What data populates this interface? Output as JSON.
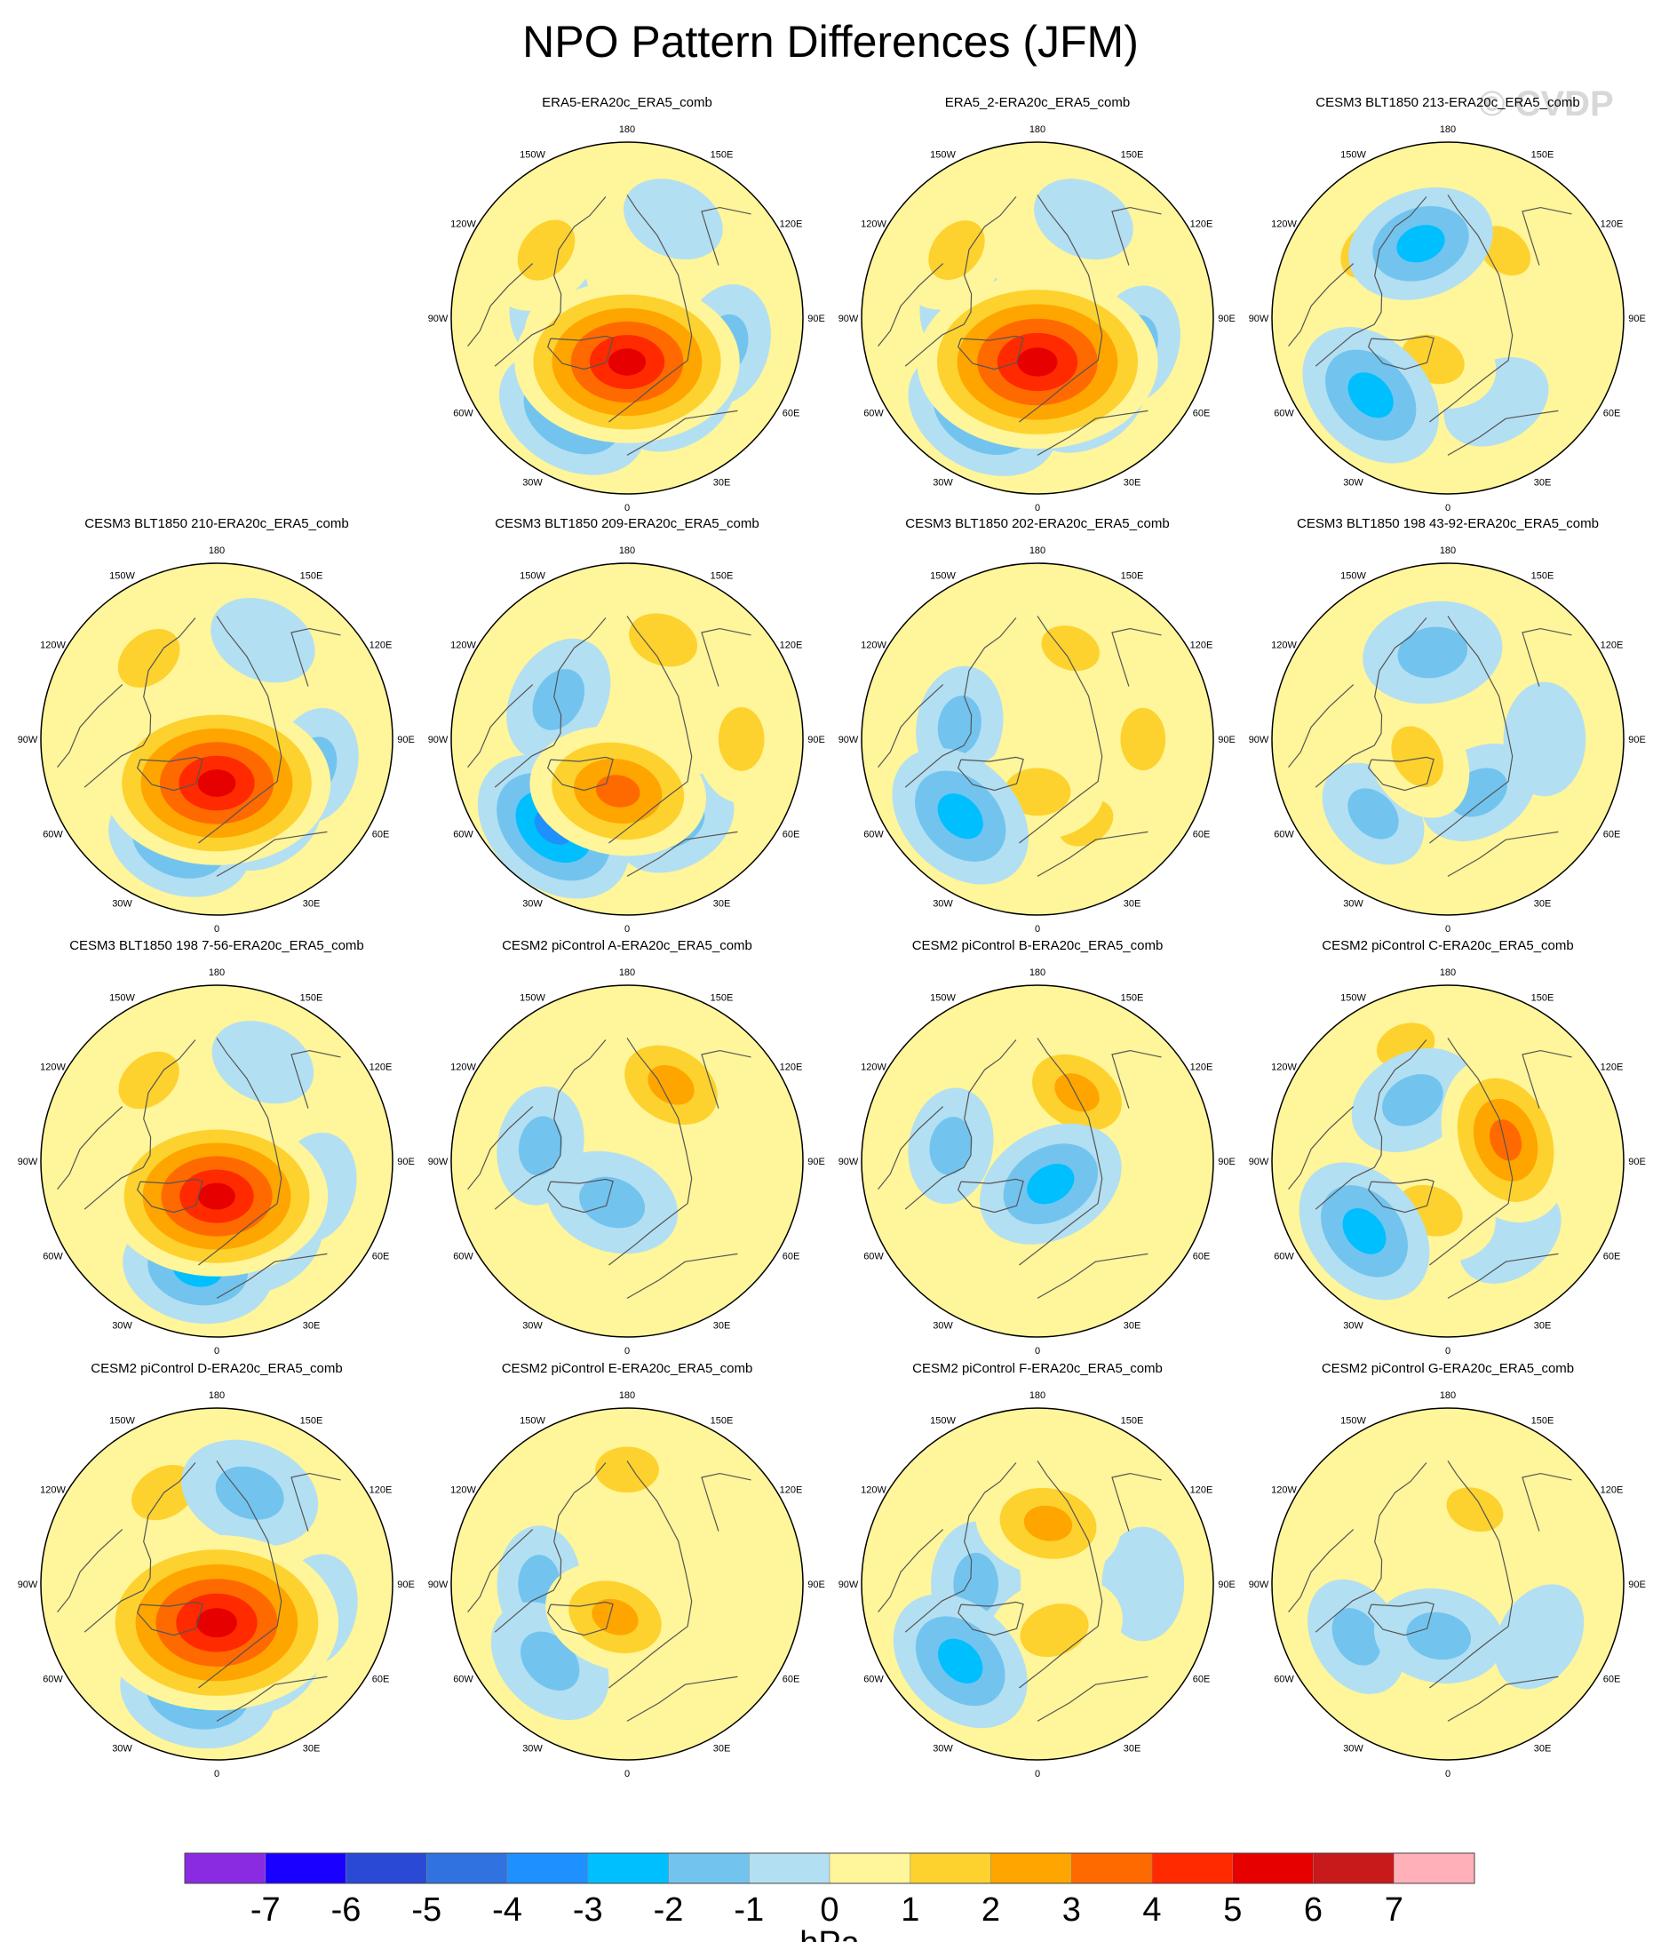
{
  "title": "NPO Pattern Differences (JFM)",
  "watermark": "© CVDP",
  "chart_data": {
    "type": "contour-map-panels",
    "projection": "north polar stereographic",
    "variable": "NPO pattern difference",
    "units": "hPa",
    "colorbar": {
      "levels": [
        -7,
        -6,
        -5,
        -4,
        -3,
        -2,
        -1,
        0,
        1,
        2,
        3,
        4,
        5,
        6,
        7
      ],
      "tick_labels": [
        "-7",
        "-6",
        "-5",
        "-4",
        "-3",
        "-2",
        "-1",
        "0",
        "1",
        "2",
        "3",
        "4",
        "5",
        "6",
        "7"
      ],
      "colors": [
        "#8a2be2",
        "#1a00ff",
        "#2a4ad6",
        "#3072e0",
        "#1e90ff",
        "#00bfff",
        "#72c4ef",
        "#b3dff2",
        "#fff59a",
        "#fdd22e",
        "#ffa500",
        "#ff6a00",
        "#ff2a00",
        "#e60000",
        "#c81a1a",
        "#ffb0b8"
      ],
      "label": "hPa"
    },
    "lon_labels": [
      "180",
      "150E",
      "120E",
      "90E",
      "60E",
      "30E",
      "0",
      "30W",
      "60W",
      "90W",
      "120W",
      "150W"
    ],
    "panels": [
      {
        "title": "ERA5-ERA20c_ERA5_comb",
        "features": [
          {
            "lon": 0,
            "r": 0.25,
            "max": 5.2
          },
          {
            "lon": 75,
            "r": 0.58,
            "max": -1.3
          },
          {
            "lon": 155,
            "r": 0.62,
            "max": -0.6
          },
          {
            "lon": -55,
            "r": 0.35,
            "max": 1.5
          },
          {
            "lon": -130,
            "r": 0.6,
            "max": 1.8
          },
          {
            "lon": -30,
            "r": 0.62,
            "max": -2.6
          },
          {
            "lon": 30,
            "r": 0.55,
            "max": -1.4
          },
          {
            "lon": -100,
            "r": 0.45,
            "max": -0.8
          }
        ]
      },
      {
        "title": "ERA5_2-ERA20c_ERA5_comb",
        "features": [
          {
            "lon": 0,
            "r": 0.25,
            "max": 5.8
          },
          {
            "lon": 75,
            "r": 0.58,
            "max": -1.2
          },
          {
            "lon": 155,
            "r": 0.62,
            "max": -0.6
          },
          {
            "lon": -55,
            "r": 0.35,
            "max": 1.6
          },
          {
            "lon": -130,
            "r": 0.6,
            "max": 1.7
          },
          {
            "lon": -30,
            "r": 0.62,
            "max": -2.7
          },
          {
            "lon": 30,
            "r": 0.55,
            "max": -1.5
          },
          {
            "lon": -100,
            "r": 0.45,
            "max": -0.8
          }
        ]
      },
      {
        "title": "CESM3 BLT1850 213-ERA20c_ERA5_comb",
        "features": [
          {
            "lon": -20,
            "r": 0.25,
            "max": 1.6
          },
          {
            "lon": -160,
            "r": 0.45,
            "max": -2.3
          },
          {
            "lon": -45,
            "r": 0.62,
            "max": -2.6
          },
          {
            "lon": -130,
            "r": 0.6,
            "max": 1.4
          },
          {
            "lon": 140,
            "r": 0.5,
            "max": 1.1
          },
          {
            "lon": 80,
            "r": 0.6,
            "max": 0.9
          },
          {
            "lon": 30,
            "r": 0.55,
            "max": -0.9
          }
        ]
      },
      {
        "title": "CESM3 BLT1850 210-ERA20c_ERA5_comb",
        "features": [
          {
            "lon": 0,
            "r": 0.25,
            "max": 5.3
          },
          {
            "lon": 75,
            "r": 0.58,
            "max": -1.1
          },
          {
            "lon": 155,
            "r": 0.62,
            "max": -0.8
          },
          {
            "lon": -55,
            "r": 0.35,
            "max": 1.5
          },
          {
            "lon": -140,
            "r": 0.6,
            "max": 1.9
          },
          {
            "lon": -20,
            "r": 0.62,
            "max": -2.2
          },
          {
            "lon": 30,
            "r": 0.55,
            "max": -1.2
          }
        ]
      },
      {
        "title": "CESM3 BLT1850 209-ERA20c_ERA5_comb",
        "features": [
          {
            "lon": -10,
            "r": 0.3,
            "max": 3.4
          },
          {
            "lon": -40,
            "r": 0.65,
            "max": -3.1
          },
          {
            "lon": -120,
            "r": 0.45,
            "max": -1.6
          },
          {
            "lon": 160,
            "r": 0.6,
            "max": 2.0
          },
          {
            "lon": 90,
            "r": 0.65,
            "max": 1.5
          },
          {
            "lon": 30,
            "r": 0.55,
            "max": -1.4
          },
          {
            "lon": -80,
            "r": 0.35,
            "max": 1.2
          }
        ]
      },
      {
        "title": "CESM3 BLT1850 202-ERA20c_ERA5_comb",
        "features": [
          {
            "lon": 0,
            "r": 0.3,
            "max": 1.7
          },
          {
            "lon": -45,
            "r": 0.62,
            "max": -2.6
          },
          {
            "lon": -100,
            "r": 0.45,
            "max": -1.2
          },
          {
            "lon": 160,
            "r": 0.55,
            "max": 1.2
          },
          {
            "lon": 90,
            "r": 0.6,
            "max": 1.4
          },
          {
            "lon": 30,
            "r": 0.55,
            "max": 1.1
          },
          {
            "lon": -150,
            "r": 0.45,
            "max": 1.0
          }
        ]
      },
      {
        "title": "CESM3 BLT1850 198 43-92-ERA20c_ERA5_comb",
        "features": [
          {
            "lon": -60,
            "r": 0.2,
            "max": 1.6
          },
          {
            "lon": -170,
            "r": 0.5,
            "max": -2.0
          },
          {
            "lon": 30,
            "r": 0.35,
            "max": -1.3
          },
          {
            "lon": -45,
            "r": 0.6,
            "max": -1.1
          },
          {
            "lon": 90,
            "r": 0.55,
            "max": -1.0
          },
          {
            "lon": 150,
            "r": 0.6,
            "max": 0.8
          }
        ]
      },
      {
        "title": "CESM3 BLT1850 198 7-56-ERA20c_ERA5_comb",
        "features": [
          {
            "lon": 0,
            "r": 0.2,
            "max": 5.1
          },
          {
            "lon": 75,
            "r": 0.58,
            "max": -0.9
          },
          {
            "lon": 155,
            "r": 0.62,
            "max": -0.7
          },
          {
            "lon": -50,
            "r": 0.35,
            "max": 1.4
          },
          {
            "lon": -140,
            "r": 0.6,
            "max": 1.8
          },
          {
            "lon": -10,
            "r": 0.62,
            "max": -2.4
          },
          {
            "lon": 30,
            "r": 0.55,
            "max": -1.3
          }
        ]
      },
      {
        "title": "CESM2 piControl A-ERA20c_ERA5_comb",
        "features": [
          {
            "lon": -20,
            "r": 0.25,
            "max": -1.8
          },
          {
            "lon": 150,
            "r": 0.5,
            "max": 2.3
          },
          {
            "lon": -100,
            "r": 0.5,
            "max": -1.2
          },
          {
            "lon": 80,
            "r": 0.6,
            "max": 0.7
          },
          {
            "lon": -150,
            "r": 0.55,
            "max": 0.6
          }
        ]
      },
      {
        "title": "CESM2 piControl B-ERA20c_ERA5_comb",
        "features": [
          {
            "lon": 30,
            "r": 0.15,
            "max": -2.4
          },
          {
            "lon": 150,
            "r": 0.45,
            "max": 2.1
          },
          {
            "lon": -100,
            "r": 0.5,
            "max": -1.1
          },
          {
            "lon": -150,
            "r": 0.6,
            "max": 0.7
          },
          {
            "lon": 90,
            "r": 0.6,
            "max": 0.8
          }
        ]
      },
      {
        "title": "CESM2 piControl C-ERA20c_ERA5_comb",
        "features": [
          {
            "lon": 110,
            "r": 0.35,
            "max": 3.1
          },
          {
            "lon": -20,
            "r": 0.3,
            "max": 1.8
          },
          {
            "lon": -50,
            "r": 0.62,
            "max": -2.5
          },
          {
            "lon": -150,
            "r": 0.4,
            "max": -1.6
          },
          {
            "lon": -160,
            "r": 0.7,
            "max": 1.2
          },
          {
            "lon": 40,
            "r": 0.55,
            "max": -1.0
          }
        ]
      },
      {
        "title": "CESM2 piControl D-ERA20c_ERA5_comb",
        "features": [
          {
            "lon": 0,
            "r": 0.22,
            "max": 5.9
          },
          {
            "lon": 75,
            "r": 0.58,
            "max": -1.0
          },
          {
            "lon": 160,
            "r": 0.55,
            "max": -2.0
          },
          {
            "lon": -55,
            "r": 0.35,
            "max": 1.6
          },
          {
            "lon": -150,
            "r": 0.6,
            "max": 1.9
          },
          {
            "lon": -10,
            "r": 0.62,
            "max": -2.6
          },
          {
            "lon": 30,
            "r": 0.55,
            "max": -1.2
          }
        ]
      },
      {
        "title": "CESM2 piControl E-ERA20c_ERA5_comb",
        "features": [
          {
            "lon": -20,
            "r": 0.2,
            "max": 2.1
          },
          {
            "lon": -45,
            "r": 0.62,
            "max": -1.8
          },
          {
            "lon": -90,
            "r": 0.5,
            "max": -1.1
          },
          {
            "lon": 180,
            "r": 0.65,
            "max": 1.5
          },
          {
            "lon": 60,
            "r": 0.6,
            "max": 0.8
          },
          {
            "lon": 120,
            "r": 0.5,
            "max": 0.7
          }
        ]
      },
      {
        "title": "CESM2 piControl F-ERA20c_ERA5_comb",
        "features": [
          {
            "lon": 170,
            "r": 0.35,
            "max": 2.2
          },
          {
            "lon": 20,
            "r": 0.28,
            "max": 2.0
          },
          {
            "lon": -45,
            "r": 0.62,
            "max": -2.5
          },
          {
            "lon": -90,
            "r": 0.35,
            "max": -1.4
          },
          {
            "lon": 90,
            "r": 0.6,
            "max": -1.0
          },
          {
            "lon": -150,
            "r": 0.6,
            "max": 0.8
          }
        ]
      },
      {
        "title": "CESM2 piControl G-ERA20c_ERA5_comb",
        "features": [
          {
            "lon": -10,
            "r": 0.3,
            "max": -1.6
          },
          {
            "lon": -60,
            "r": 0.6,
            "max": -1.3
          },
          {
            "lon": 160,
            "r": 0.45,
            "max": 1.1
          },
          {
            "lon": 60,
            "r": 0.6,
            "max": -0.9
          },
          {
            "lon": -160,
            "r": 0.7,
            "max": 0.9
          }
        ]
      }
    ]
  }
}
